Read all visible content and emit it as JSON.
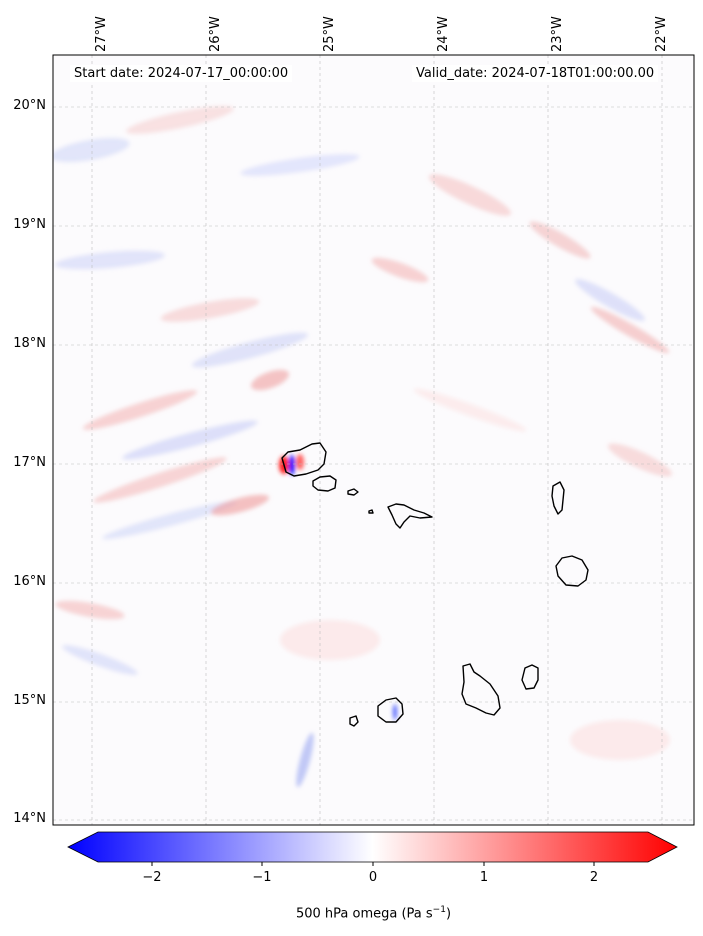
{
  "map": {
    "start_label": "Start date: 2024-07-17_00:00:00",
    "valid_label": "Valid_date: 2024-07-18T01:00:00.00",
    "lon_ticks": [
      "27°W",
      "26°W",
      "25°W",
      "24°W",
      "23°W",
      "22°W"
    ],
    "lat_ticks": [
      "20°N",
      "19°N",
      "18°N",
      "17°N",
      "16°N",
      "15°N",
      "14°N"
    ],
    "extent": {
      "lon": [
        -27.3,
        -21.8
      ],
      "lat": [
        13.95,
        20.45
      ]
    },
    "gridlines": true,
    "field": "500 hPa omega",
    "colors": {
      "negative": "#0000ff",
      "zero": "#ffffff",
      "positive": "#ff0000",
      "coast": "#000000"
    }
  },
  "colorbar": {
    "ticks": [
      "−2",
      "−1",
      "0",
      "1",
      "2"
    ],
    "tick_values": [
      -2,
      -1,
      0,
      1,
      2
    ],
    "range": [
      -2.5,
      2.5
    ],
    "extend": "both",
    "label_main": "500 hPa omega (Pa s",
    "label_sup": "−1",
    "label_close": ")"
  }
}
